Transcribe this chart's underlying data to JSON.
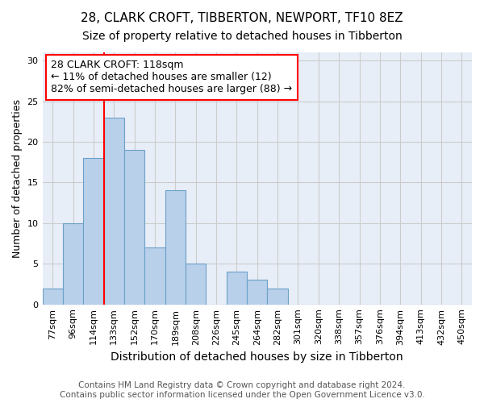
{
  "title1": "28, CLARK CROFT, TIBBERTON, NEWPORT, TF10 8EZ",
  "title2": "Size of property relative to detached houses in Tibberton",
  "xlabel": "Distribution of detached houses by size in Tibberton",
  "ylabel": "Number of detached properties",
  "categories": [
    "77sqm",
    "96sqm",
    "114sqm",
    "133sqm",
    "152sqm",
    "170sqm",
    "189sqm",
    "208sqm",
    "226sqm",
    "245sqm",
    "264sqm",
    "282sqm",
    "301sqm",
    "320sqm",
    "338sqm",
    "357sqm",
    "376sqm",
    "394sqm",
    "413sqm",
    "432sqm",
    "450sqm"
  ],
  "values": [
    2,
    10,
    18,
    23,
    19,
    7,
    14,
    5,
    0,
    4,
    3,
    2,
    0,
    0,
    0,
    0,
    0,
    0,
    0,
    0,
    0
  ],
  "bar_color": "#b8d0ea",
  "bar_edge_color": "#6ca0c8",
  "vline_x": 2.5,
  "annotation_line1": "28 CLARK CROFT: 118sqm",
  "annotation_line2": "← 11% of detached houses are smaller (12)",
  "annotation_line3": "82% of semi-detached houses are larger (88) →",
  "annotation_box_color": "white",
  "annotation_box_edge_color": "red",
  "vline_color": "red",
  "ylim": [
    0,
    31
  ],
  "yticks": [
    0,
    5,
    10,
    15,
    20,
    25,
    30
  ],
  "grid_color": "#cccccc",
  "bg_color": "#e8eef8",
  "footer1": "Contains HM Land Registry data © Crown copyright and database right 2024.",
  "footer2": "Contains public sector information licensed under the Open Government Licence v3.0.",
  "title1_fontsize": 11,
  "title2_fontsize": 10,
  "xlabel_fontsize": 10,
  "ylabel_fontsize": 9,
  "ann_fontsize": 9,
  "tick_fontsize": 8,
  "footer_fontsize": 7.5
}
